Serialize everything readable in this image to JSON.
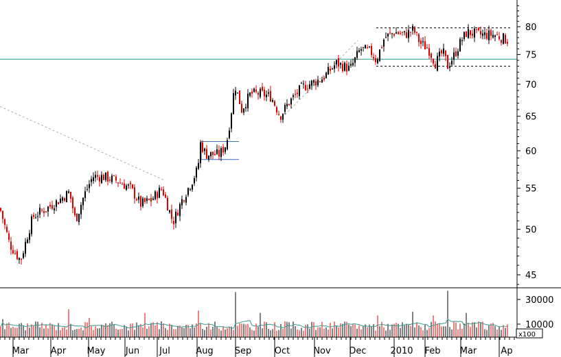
{
  "chart_data": {
    "type": "candlestick",
    "scale": "log",
    "x_labels": [
      "Mar",
      "Apr",
      "May",
      "Jun",
      "Jul",
      "Aug",
      "Sep",
      "Oct",
      "Nov",
      "Dec",
      "2010",
      "Feb",
      "Mar",
      "Ap"
    ],
    "price_axis": {
      "ticks": [
        45,
        50,
        55,
        60,
        65,
        70,
        75,
        80
      ],
      "ylim": [
        43,
        85
      ]
    },
    "volume_axis": {
      "ticks": [
        "10000",
        "30000"
      ],
      "ylim": [
        0,
        40000
      ],
      "multiplier_label": "x100"
    },
    "reference_line": {
      "value": 74.2,
      "color": "#3a9a8c"
    },
    "boxes": [
      {
        "x_from": "Aug",
        "x_to": "Aug",
        "y_from": 58.8,
        "y_to": 61.3
      },
      {
        "x_from": "Dec",
        "x_to": "Mar",
        "y_from": 73.0,
        "y_to": 79.8
      }
    ],
    "trendlines": [
      {
        "from": [
          0,
          66.5
        ],
        "to": [
          "Jul",
          56.0
        ]
      },
      {
        "from": [
          "Oct",
          64.8
        ],
        "to": [
          "Dec",
          77.5
        ]
      }
    ],
    "price_path": [
      [
        0,
        52.5
      ],
      [
        14,
        48.3
      ],
      [
        30,
        46.5
      ],
      [
        48,
        51.5
      ],
      [
        68,
        52.5
      ],
      [
        86,
        53.5
      ],
      [
        101,
        54.5
      ],
      [
        110,
        51.0
      ],
      [
        122,
        54.0
      ],
      [
        135,
        56.5
      ],
      [
        150,
        56.5
      ],
      [
        170,
        56.0
      ],
      [
        190,
        55.0
      ],
      [
        205,
        53.0
      ],
      [
        220,
        53.5
      ],
      [
        236,
        55.0
      ],
      [
        252,
        50.8
      ],
      [
        265,
        53.5
      ],
      [
        280,
        56.0
      ],
      [
        288,
        57.5
      ],
      [
        292,
        61.0
      ],
      [
        300,
        59.5
      ],
      [
        320,
        59.5
      ],
      [
        330,
        61.0
      ],
      [
        336,
        65.0
      ],
      [
        342,
        70.0
      ],
      [
        352,
        66.0
      ],
      [
        365,
        68.5
      ],
      [
        380,
        68.5
      ],
      [
        395,
        68.0
      ],
      [
        408,
        65.0
      ],
      [
        420,
        67.0
      ],
      [
        440,
        69.5
      ],
      [
        470,
        71.0
      ],
      [
        490,
        73.5
      ],
      [
        510,
        72.5
      ],
      [
        525,
        76.0
      ],
      [
        540,
        75.5
      ],
      [
        548,
        74.0
      ],
      [
        560,
        78.0
      ],
      [
        575,
        79.0
      ],
      [
        590,
        78.5
      ],
      [
        602,
        79.5
      ],
      [
        612,
        77.0
      ],
      [
        624,
        76.0
      ],
      [
        634,
        73.5
      ],
      [
        645,
        75.5
      ],
      [
        652,
        73.0
      ],
      [
        662,
        75.0
      ],
      [
        672,
        77.5
      ],
      [
        680,
        79.0
      ],
      [
        700,
        78.5
      ],
      [
        720,
        78.5
      ],
      [
        740,
        77.5
      ]
    ],
    "volume_baseline": 8500,
    "volume_spikes": [
      [
        4,
        14000
      ],
      [
        100,
        22000
      ],
      [
        130,
        15000
      ],
      [
        210,
        19000
      ],
      [
        290,
        21000
      ],
      [
        342,
        36000
      ],
      [
        380,
        19000
      ],
      [
        550,
        17000
      ],
      [
        600,
        20000
      ],
      [
        630,
        17000
      ],
      [
        651,
        37000
      ],
      [
        680,
        19000
      ]
    ]
  }
}
